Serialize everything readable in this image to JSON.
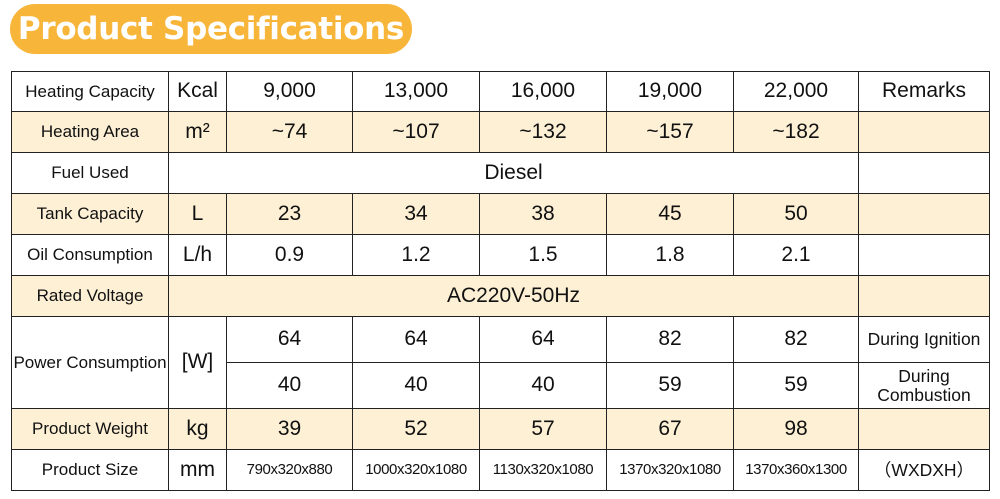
{
  "title": "Product Specifications",
  "columns": [
    "9,000",
    "13,000",
    "16,000",
    "19,000",
    "22,000"
  ],
  "remarks_header": "Remarks",
  "rows": {
    "heating_capacity": {
      "label": "Heating Capacity",
      "unit": "Kcal"
    },
    "heating_area": {
      "label": "Heating Area",
      "unit": "m²",
      "values": [
        "~74",
        "~107",
        "~132",
        "~157",
        "~182"
      ]
    },
    "fuel_used": {
      "label": "Fuel Used",
      "value": "Diesel"
    },
    "tank_capacity": {
      "label": "Tank Capacity",
      "unit": "L",
      "values": [
        "23",
        "34",
        "38",
        "45",
        "50"
      ]
    },
    "oil_consumption": {
      "label": "Oil Consumption",
      "unit": "L/h",
      "values": [
        "0.9",
        "1.2",
        "1.5",
        "1.8",
        "2.1"
      ]
    },
    "rated_voltage": {
      "label": "Rated Voltage",
      "value": "AC220V-50Hz"
    },
    "power_consumption": {
      "label": "Power Consumption",
      "unit": "[W]",
      "ignition_values": [
        "64",
        "64",
        "64",
        "82",
        "82"
      ],
      "ignition_remark": "During Ignition",
      "combustion_values": [
        "40",
        "40",
        "40",
        "59",
        "59"
      ],
      "combustion_remark": "During Combustion"
    },
    "product_weight": {
      "label": "Product Weight",
      "unit": "kg",
      "values": [
        "39",
        "52",
        "57",
        "67",
        "98"
      ]
    },
    "product_size": {
      "label": "Product Size",
      "unit": "mm",
      "values": [
        "790x320x880",
        "1000x320x1080",
        "1130x320x1080",
        "1370x320x1080",
        "1370x360x1300"
      ],
      "remark": "（WXDXH）"
    }
  }
}
